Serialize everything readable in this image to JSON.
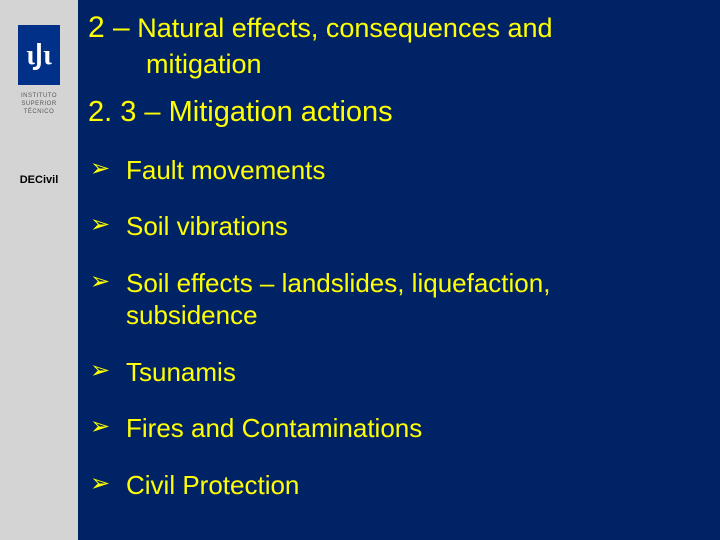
{
  "colors": {
    "background": "#002366",
    "sidebar_bg": "#d4d4d4",
    "text": "#ffff00",
    "logo_bg": "#003087",
    "logo_text": "#ffffff",
    "inst_text": "#585858",
    "dept_text": "#000000"
  },
  "typography": {
    "heading1_fontsize": 27,
    "heading1_num_fontsize": 30,
    "heading2_fontsize": 29,
    "bullet_fontsize": 26,
    "dept_fontsize": 11,
    "inst_fontsize": 6
  },
  "sidebar": {
    "logo_glyph": "ιͿι",
    "inst_line1": "INSTITUTO",
    "inst_line2": "SUPERIOR",
    "inst_line3": "TÉCNICO",
    "dept": "DECivil"
  },
  "heading1": {
    "num": "2 –",
    "line1": "Natural effects, consequences and",
    "line2": "mitigation"
  },
  "heading2": "2. 3 – Mitigation actions",
  "bullets": {
    "0": "Fault movements",
    "1": "Soil vibrations",
    "2a": "Soil effects – landslides, liquefaction,",
    "2b": "subsidence",
    "3": "Tsunamis",
    "4": "Fires  and Contaminations",
    "5": "Civil Protection"
  }
}
